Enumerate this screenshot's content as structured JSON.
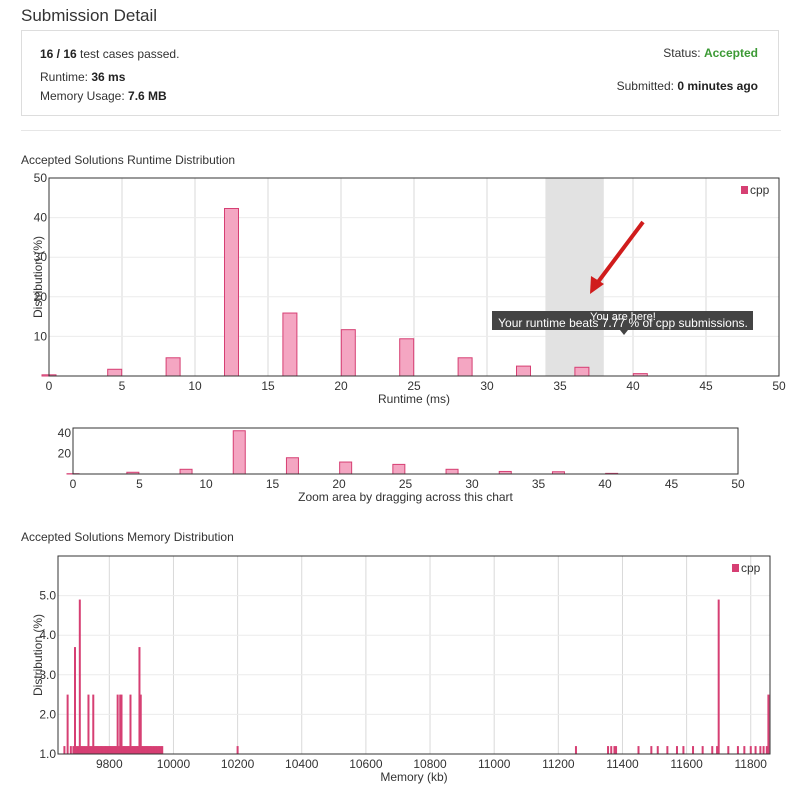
{
  "page": {
    "title": "Submission Detail"
  },
  "summary": {
    "passed": "16 / 16",
    "passed_suffix": " test cases passed.",
    "runtime_label": "Runtime: ",
    "runtime_value": "36 ms",
    "memory_label": "Memory Usage: ",
    "memory_value": "7.6 MB",
    "status_label": "Status: ",
    "status_value": "Accepted",
    "submitted_label": "Submitted: ",
    "submitted_value": "0 minutes ago"
  },
  "colors": {
    "bar_fill": "#f4a6c2",
    "bar_stroke": "#d63f73",
    "accepted": "#3c9a35",
    "arrow": "#d01c1c",
    "tooltip_bg": "#444444",
    "highlight": "#e2e2e2"
  },
  "runtime_section": {
    "title": "Accepted Solutions Runtime Distribution"
  },
  "memory_section": {
    "title": "Accepted Solutions Memory Distribution"
  },
  "tooltip": {
    "line1": "You are here!",
    "line2": "Your runtime beats 7.77 % of cpp submissions."
  },
  "chart_data": [
    {
      "type": "bar",
      "name": "runtime-distribution",
      "xlabel": "Runtime (ms)",
      "ylabel": "Distribution (%)",
      "xlim": [
        0,
        50
      ],
      "ylim": [
        0,
        50
      ],
      "xticks": [
        0,
        5,
        10,
        15,
        20,
        25,
        30,
        35,
        40,
        45,
        50
      ],
      "yticks": [
        10,
        20,
        30,
        40,
        50
      ],
      "legend": "cpp",
      "legend_position": "top-right",
      "highlight_range": [
        34,
        38
      ],
      "grid": true,
      "series": [
        {
          "x": [
            0,
            4.5,
            8.5,
            12.5,
            16.5,
            20.5,
            24.5,
            28.5,
            32.5,
            36.5,
            40.5
          ],
          "values": [
            0.3,
            1.7,
            4.6,
            42.3,
            15.9,
            11.7,
            9.4,
            4.6,
            2.5,
            2.2,
            0.6
          ]
        }
      ]
    },
    {
      "type": "bar",
      "name": "runtime-zoom-navigator",
      "caption": "Zoom area by dragging across this chart",
      "xlim": [
        0,
        50
      ],
      "ylim": [
        0,
        45
      ],
      "xticks": [
        0,
        5,
        10,
        15,
        20,
        25,
        30,
        35,
        40,
        45,
        50
      ],
      "yticks": [
        20,
        40
      ],
      "series": [
        {
          "x": [
            0,
            4.5,
            8.5,
            12.5,
            16.5,
            20.5,
            24.5,
            28.5,
            32.5,
            36.5,
            40.5
          ],
          "values": [
            0.3,
            1.7,
            4.6,
            42.3,
            15.9,
            11.7,
            9.4,
            4.6,
            2.5,
            2.2,
            0.6
          ]
        }
      ]
    },
    {
      "type": "bar",
      "name": "memory-distribution",
      "xlabel": "Memory (kb)",
      "ylabel": "Distribution (%)",
      "xlim": [
        9640,
        11860
      ],
      "ylim": [
        1.0,
        6.0
      ],
      "xticks": [
        9800,
        10000,
        10200,
        10400,
        10600,
        10800,
        11000,
        11200,
        11400,
        11600,
        11800
      ],
      "yticks": [
        1.0,
        2.0,
        3.0,
        4.0,
        5.0
      ],
      "ytick_labels": [
        "1.0",
        "2.0",
        "3.0",
        "4.0",
        "5.0"
      ],
      "legend": "cpp",
      "legend_position": "top-right",
      "grid": true,
      "series": [
        {
          "x": [
            9660,
            9670,
            9680,
            9688,
            9693,
            9698,
            9703,
            9708,
            9712,
            9716,
            9720,
            9725,
            9730,
            9735,
            9740,
            9745,
            9750,
            9754,
            9758,
            9762,
            9766,
            9770,
            9774,
            9778,
            9782,
            9786,
            9790,
            9794,
            9798,
            9802,
            9806,
            9810,
            9814,
            9818,
            9822,
            9826,
            9830,
            9834,
            9838,
            9842,
            9846,
            9850,
            9854,
            9858,
            9862,
            9866,
            9870,
            9874,
            9878,
            9882,
            9886,
            9890,
            9894,
            9898,
            9902,
            9906,
            9910,
            9914,
            9918,
            9922,
            9926,
            9930,
            9935,
            9940,
            9945,
            9950,
            9955,
            9960,
            9965,
            10200,
            11255,
            11355,
            11365,
            11375,
            11380,
            11450,
            11490,
            11510,
            11540,
            11570,
            11590,
            11620,
            11650,
            11680,
            11695,
            11700,
            11730,
            11760,
            11780,
            11800,
            11815,
            11830,
            11840,
            11850,
            11855
          ],
          "values": [
            1.2,
            2.5,
            1.2,
            1.2,
            3.7,
            1.2,
            1.2,
            4.9,
            1.2,
            1.2,
            1.2,
            1.2,
            1.2,
            2.5,
            1.2,
            1.2,
            2.5,
            1.2,
            1.2,
            1.2,
            1.2,
            1.2,
            1.2,
            1.2,
            1.2,
            1.2,
            1.2,
            1.2,
            1.2,
            1.2,
            1.2,
            1.2,
            1.2,
            1.2,
            1.2,
            2.5,
            1.2,
            2.5,
            2.5,
            1.2,
            1.2,
            1.2,
            1.2,
            1.2,
            1.2,
            2.5,
            1.2,
            1.2,
            1.2,
            1.2,
            1.2,
            1.2,
            3.7,
            2.5,
            1.2,
            1.2,
            1.2,
            1.2,
            1.2,
            1.2,
            1.2,
            1.2,
            1.2,
            1.2,
            1.2,
            1.2,
            1.2,
            1.2,
            1.2,
            1.2,
            1.2,
            1.2,
            1.2,
            1.2,
            1.2,
            1.2,
            1.2,
            1.2,
            1.2,
            1.2,
            1.2,
            1.2,
            1.2,
            1.2,
            1.2,
            4.9,
            1.2,
            1.2,
            1.2,
            1.2,
            1.2,
            1.2,
            1.2,
            1.2,
            2.5
          ]
        }
      ]
    }
  ]
}
